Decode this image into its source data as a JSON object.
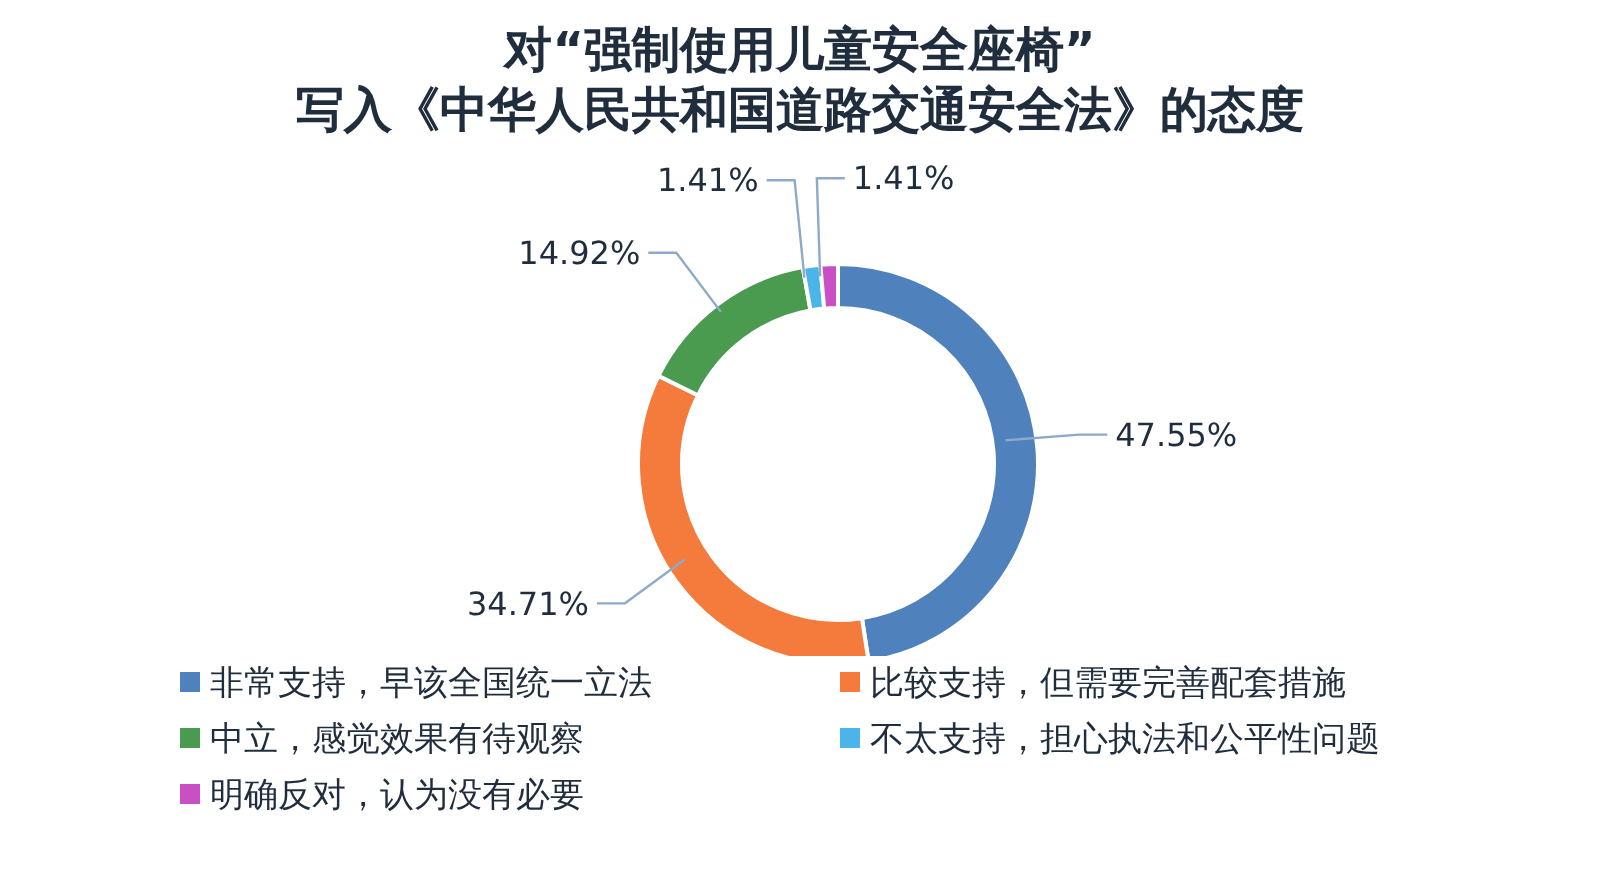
{
  "chart_data": {
    "type": "donut",
    "title": "对“强制使用儿童安全座椅”\n写入《中华人民共和国道路交通安全法》的态度",
    "categories": [
      "非常支持，早该全国统一立法",
      "比较支持，但需要完善配套措施",
      "中立，感觉效果有待观察",
      "不太支持，担心执法和公平性问题",
      "明确反对，认为没有必要"
    ],
    "values": [
      47.55,
      34.71,
      14.92,
      1.41,
      1.41
    ],
    "colors": [
      "#4f81bd",
      "#f57b3c",
      "#4a9a4f",
      "#4bb4e8",
      "#c84fc4"
    ],
    "value_labels": [
      "47.55%",
      "34.71%",
      "14.92%",
      "1.41%",
      "1.41%"
    ],
    "legend": "bottom"
  }
}
